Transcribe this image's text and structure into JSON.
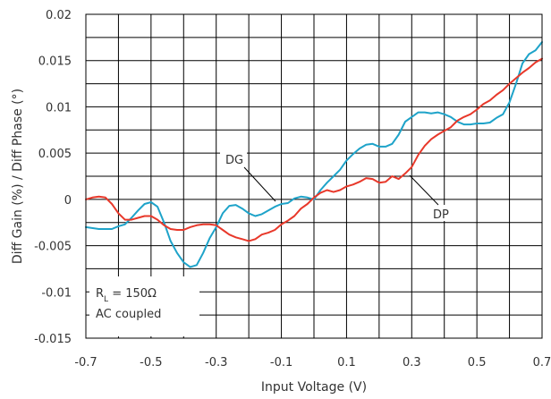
{
  "chart_data": {
    "type": "line",
    "xlabel": "Input Voltage (V)",
    "ylabel": "Diff Gain (%) / Diff Phase (°)",
    "xlim": [
      -0.7,
      0.7
    ],
    "ylim": [
      -0.015,
      0.02
    ],
    "grid": true,
    "x_ticks": [
      "-0.7",
      "-0.5",
      "-0.3",
      "-0.1",
      "0.1",
      "0.3",
      "0.5",
      "0.7"
    ],
    "y_ticks": [
      "0.02",
      "0.015",
      "0.01",
      "0.005",
      "0",
      "-0.005",
      "-0.01",
      "-0.015"
    ],
    "colors": {
      "DG": "#1ea3c9",
      "DP": "#e8382a",
      "grid": "#000000"
    },
    "series": [
      {
        "name": "DG",
        "x": [
          -0.7,
          -0.66,
          -0.62,
          -0.6,
          -0.58,
          -0.56,
          -0.54,
          -0.52,
          -0.5,
          -0.48,
          -0.46,
          -0.44,
          -0.42,
          -0.4,
          -0.38,
          -0.36,
          -0.34,
          -0.32,
          -0.3,
          -0.28,
          -0.26,
          -0.24,
          -0.22,
          -0.2,
          -0.18,
          -0.16,
          -0.14,
          -0.12,
          -0.1,
          -0.08,
          -0.06,
          -0.04,
          -0.02,
          0,
          0.02,
          0.04,
          0.06,
          0.08,
          0.1,
          0.12,
          0.14,
          0.16,
          0.18,
          0.2,
          0.22,
          0.24,
          0.26,
          0.28,
          0.3,
          0.32,
          0.34,
          0.36,
          0.38,
          0.4,
          0.42,
          0.44,
          0.46,
          0.48,
          0.5,
          0.52,
          0.54,
          0.56,
          0.58,
          0.6,
          0.62,
          0.64,
          0.66,
          0.68,
          0.7
        ],
        "values": [
          -0.003,
          -0.0032,
          -0.0032,
          -0.0029,
          -0.0027,
          -0.002,
          -0.0012,
          -0.0005,
          -0.0003,
          -0.0008,
          -0.0025,
          -0.0045,
          -0.0058,
          -0.0068,
          -0.0073,
          -0.0071,
          -0.0058,
          -0.0042,
          -0.003,
          -0.0015,
          -0.0007,
          -0.0006,
          -0.001,
          -0.0015,
          -0.0018,
          -0.0016,
          -0.0012,
          -0.0008,
          -0.0005,
          -0.0004,
          0.0001,
          0.0003,
          0.0002,
          0,
          0.001,
          0.0018,
          0.0025,
          0.0032,
          0.0042,
          0.0049,
          0.0055,
          0.0059,
          0.006,
          0.0057,
          0.0057,
          0.006,
          0.007,
          0.0084,
          0.0089,
          0.0094,
          0.0094,
          0.0093,
          0.0094,
          0.0092,
          0.0089,
          0.0084,
          0.0081,
          0.0081,
          0.0082,
          0.0082,
          0.0083,
          0.0088,
          0.0092,
          0.0105,
          0.0125,
          0.0147,
          0.0157,
          0.0161,
          0.017
        ]
      },
      {
        "name": "DP",
        "x": [
          -0.7,
          -0.68,
          -0.66,
          -0.64,
          -0.62,
          -0.6,
          -0.58,
          -0.56,
          -0.54,
          -0.52,
          -0.5,
          -0.48,
          -0.46,
          -0.44,
          -0.42,
          -0.4,
          -0.38,
          -0.36,
          -0.34,
          -0.32,
          -0.3,
          -0.28,
          -0.26,
          -0.24,
          -0.22,
          -0.2,
          -0.18,
          -0.16,
          -0.14,
          -0.12,
          -0.1,
          -0.08,
          -0.06,
          -0.04,
          -0.02,
          0,
          0.02,
          0.04,
          0.06,
          0.08,
          0.1,
          0.12,
          0.14,
          0.16,
          0.18,
          0.2,
          0.22,
          0.24,
          0.26,
          0.28,
          0.3,
          0.32,
          0.34,
          0.36,
          0.38,
          0.4,
          0.42,
          0.44,
          0.46,
          0.48,
          0.5,
          0.52,
          0.54,
          0.56,
          0.58,
          0.6,
          0.62,
          0.64,
          0.66,
          0.68,
          0.7
        ],
        "values": [
          0,
          0.0002,
          0.0003,
          0.0002,
          -0.0005,
          -0.0015,
          -0.0022,
          -0.0022,
          -0.002,
          -0.0018,
          -0.0018,
          -0.0022,
          -0.0028,
          -0.0032,
          -0.0033,
          -0.0033,
          -0.003,
          -0.0028,
          -0.0027,
          -0.0027,
          -0.0028,
          -0.0033,
          -0.0038,
          -0.0041,
          -0.0043,
          -0.0045,
          -0.0043,
          -0.0038,
          -0.0036,
          -0.0033,
          -0.0027,
          -0.0023,
          -0.0018,
          -0.001,
          -0.0005,
          0.0002,
          0.0007,
          0.001,
          0.0008,
          0.001,
          0.0014,
          0.0016,
          0.0019,
          0.0023,
          0.0022,
          0.0018,
          0.0019,
          0.0025,
          0.0022,
          0.0028,
          0.0035,
          0.0048,
          0.0058,
          0.0065,
          0.007,
          0.0074,
          0.0078,
          0.0085,
          0.0089,
          0.0092,
          0.0097,
          0.0103,
          0.0107,
          0.0113,
          0.0118,
          0.0125,
          0.0131,
          0.0137,
          0.0142,
          0.0148,
          0.0152
        ]
      }
    ],
    "annotations": {
      "dg_label": "DG",
      "dp_label": "DP",
      "rl_main": "R",
      "rl_sub": "L",
      "rl_value": " = 150Ω",
      "coupling": "AC coupled"
    }
  }
}
